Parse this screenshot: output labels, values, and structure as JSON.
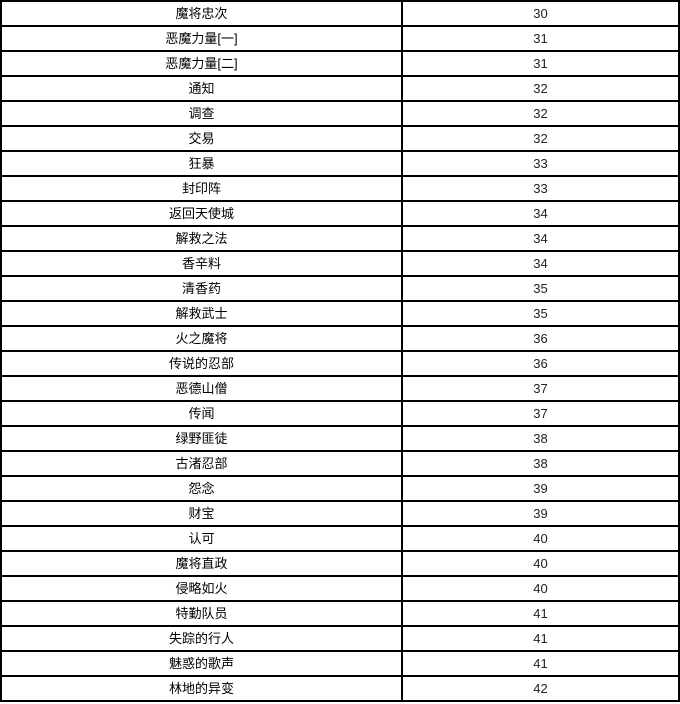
{
  "table": {
    "column_semantics": [
      "quest_name",
      "level"
    ],
    "border_color": "#000000",
    "background_color": "#ffffff",
    "rows": [
      {
        "name": "魔将忠次",
        "level": "30"
      },
      {
        "name": "恶魔力量[一]",
        "level": "31"
      },
      {
        "name": "恶魔力量[二]",
        "level": "31"
      },
      {
        "name": "通知",
        "level": "32"
      },
      {
        "name": "调查",
        "level": "32"
      },
      {
        "name": "交易",
        "level": "32"
      },
      {
        "name": "狂暴",
        "level": "33"
      },
      {
        "name": "封印阵",
        "level": "33"
      },
      {
        "name": "返回天使城",
        "level": "34"
      },
      {
        "name": "解救之法",
        "level": "34"
      },
      {
        "name": "香辛料",
        "level": "34"
      },
      {
        "name": "清香药",
        "level": "35"
      },
      {
        "name": "解救武士",
        "level": "35"
      },
      {
        "name": "火之魔将",
        "level": "36"
      },
      {
        "name": "传说的忍部",
        "level": "36"
      },
      {
        "name": "恶德山僧",
        "level": "37"
      },
      {
        "name": "传闻",
        "level": "37"
      },
      {
        "name": "绿野匪徒",
        "level": "38"
      },
      {
        "name": "古渚忍部",
        "level": "38"
      },
      {
        "name": "怨念",
        "level": "39"
      },
      {
        "name": "财宝",
        "level": "39"
      },
      {
        "name": "认可",
        "level": "40"
      },
      {
        "name": "魔将直政",
        "level": "40"
      },
      {
        "name": "侵略如火",
        "level": "40"
      },
      {
        "name": "特勤队员",
        "level": "41"
      },
      {
        "name": "失踪的行人",
        "level": "41"
      },
      {
        "name": "魅惑的歌声",
        "level": "41"
      },
      {
        "name": "林地的异变",
        "level": "42"
      }
    ]
  }
}
